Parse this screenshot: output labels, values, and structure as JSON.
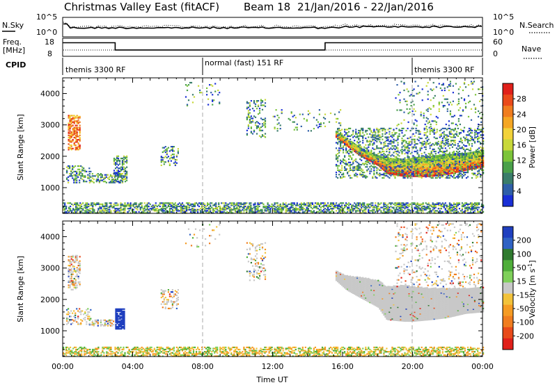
{
  "header": {
    "station": "Christmas Valley East (fitACF)",
    "beam": "Beam 18",
    "date_range": "21/Jan/2016 - 22/Jan/2016"
  },
  "noise_panel": {
    "left_label": "N.Sky",
    "right_label": "N.Search",
    "left_ticks": [
      "10^5",
      "10^0"
    ],
    "right_ticks": [
      "10^5",
      "10^0"
    ]
  },
  "freq_panel": {
    "left_label_1": "Freq.",
    "left_label_2": "[MHz]",
    "left_ticks": [
      "18",
      "8"
    ],
    "right_label": "Nave",
    "right_ticks": [
      "60",
      "0"
    ],
    "freq_segments": [
      {
        "start_h": 0,
        "end_h": 3,
        "value": 0.75
      },
      {
        "start_h": 3,
        "end_h": 15,
        "value": 0.35
      },
      {
        "start_h": 15,
        "end_h": 24,
        "value": 0.75
      }
    ]
  },
  "cpid": {
    "label": "CPID",
    "segments": [
      {
        "start_h": 0,
        "label": "themis 3300 RF"
      },
      {
        "start_h": 8,
        "label": "normal (fast) 151 RF"
      },
      {
        "start_h": 20,
        "label": "themis 3300 RF"
      }
    ]
  },
  "chart_data": [
    {
      "type": "heatmap",
      "parameter": "Power",
      "ylabel": "Slant Range [km]",
      "xlabel": "Time UT",
      "ylim": [
        180,
        4500
      ],
      "xlim_hours": [
        0,
        24
      ],
      "y_ticks": [
        1000,
        2000,
        3000,
        4000
      ],
      "colorbar_label": "Power [dB]",
      "colorbar_ticks": [
        "4",
        "8",
        "12",
        "16",
        "20",
        "24",
        "28"
      ],
      "colorbar_colors": [
        "#1a2fd6",
        "#2f5fa8",
        "#3a7d6a",
        "#4aa04a",
        "#7cc43a",
        "#c8d83a",
        "#f2d23a",
        "#f5a623",
        "#f07d1f",
        "#ea4a1a",
        "#e0201a"
      ],
      "scatter_regions": [
        {
          "t0": 0.0,
          "t1": 24.0,
          "r0": 180,
          "r1": 500,
          "density": 0.55
        },
        {
          "t0": 0.3,
          "t1": 1.0,
          "r0": 2200,
          "r1": 3300,
          "density": 0.5
        },
        {
          "t0": 0.2,
          "t1": 1.6,
          "r0": 1150,
          "r1": 1700,
          "density": 0.35
        },
        {
          "t0": 1.5,
          "t1": 3.4,
          "r0": 1150,
          "r1": 1450,
          "density": 0.45
        },
        {
          "t0": 2.9,
          "t1": 3.7,
          "r0": 1150,
          "r1": 2000,
          "density": 0.5
        },
        {
          "t0": 5.6,
          "t1": 6.6,
          "r0": 1700,
          "r1": 2300,
          "density": 0.3
        },
        {
          "t0": 10.5,
          "t1": 11.6,
          "r0": 2600,
          "r1": 3800,
          "density": 0.2
        },
        {
          "t0": 15.6,
          "t1": 24.0,
          "r0": 1300,
          "r1": 2900,
          "density": 0.3
        },
        {
          "t0": 19.0,
          "t1": 24.0,
          "r0": 2900,
          "r1": 4400,
          "density": 0.08
        },
        {
          "t0": 7.0,
          "t1": 9.0,
          "r0": 3600,
          "r1": 4400,
          "density": 0.05
        },
        {
          "t0": 12.0,
          "t1": 16.0,
          "r0": 2800,
          "r1": 3500,
          "density": 0.05
        }
      ],
      "band": {
        "t": [
          15.6,
          16.5,
          17.0,
          18.0,
          18.5,
          19.5,
          20.0,
          21.0,
          22.0,
          23.0,
          24.0
        ],
        "lower": [
          2600,
          2200,
          2000,
          1700,
          1450,
          1350,
          1350,
          1350,
          1420,
          1550,
          1650
        ],
        "upper": [
          2800,
          2450,
          2250,
          2000,
          1950,
          1900,
          1950,
          2000,
          2050,
          2100,
          2200
        ]
      }
    },
    {
      "type": "heatmap",
      "parameter": "Velocity",
      "ylabel": "Slant Range [km]",
      "xlabel": "Time UT",
      "ylim": [
        180,
        4500
      ],
      "xlim_hours": [
        0,
        24
      ],
      "y_ticks": [
        1000,
        2000,
        3000,
        4000
      ],
      "colorbar_label": "Velocity [m s^-1]",
      "colorbar_ticks": [
        "200",
        "100",
        "50",
        "15",
        "-15",
        "-50",
        "-100",
        "-200"
      ],
      "colorbar_colors": [
        "#1f3fbf",
        "#2f62c4",
        "#2f7a2f",
        "#4fae3a",
        "#7fd05a",
        "#c8c8c8",
        "#f2c23a",
        "#f59b23",
        "#f07d1f",
        "#e84a1a",
        "#e0201a"
      ],
      "scatter_regions": [
        {
          "t0": 0.0,
          "t1": 24.0,
          "r0": 180,
          "r1": 480,
          "density": 0.45
        },
        {
          "t0": 0.3,
          "t1": 1.0,
          "r0": 2300,
          "r1": 3400,
          "density": 0.45
        },
        {
          "t0": 0.2,
          "t1": 1.6,
          "r0": 1200,
          "r1": 1700,
          "density": 0.3
        },
        {
          "t0": 1.5,
          "t1": 2.9,
          "r0": 1150,
          "r1": 1350,
          "density": 0.4
        },
        {
          "t0": 5.6,
          "t1": 6.6,
          "r0": 1700,
          "r1": 2300,
          "density": 0.3
        },
        {
          "t0": 10.5,
          "t1": 11.6,
          "r0": 2600,
          "r1": 3800,
          "density": 0.2
        },
        {
          "t0": 19.0,
          "t1": 24.0,
          "r0": 2400,
          "r1": 4400,
          "density": 0.1
        },
        {
          "t0": 7.0,
          "t1": 9.0,
          "r0": 3600,
          "r1": 4400,
          "density": 0.05
        }
      ],
      "grey_band": {
        "t": [
          15.6,
          16.2,
          17.0,
          18.0,
          18.5,
          19.5,
          20.0,
          21.0,
          22.0,
          23.0,
          24.0
        ],
        "lower": [
          2600,
          2300,
          2050,
          1750,
          1350,
          1300,
          1300,
          1350,
          1420,
          1550,
          1600
        ],
        "upper": [
          2900,
          2750,
          2700,
          2600,
          2400,
          2450,
          2400,
          2350,
          2350,
          2350,
          2400
        ]
      },
      "blue_block": {
        "t0": 3.0,
        "t1": 3.5,
        "r0": 1050,
        "r1": 1700
      }
    }
  ],
  "x_axis": {
    "ticks": [
      "00:00",
      "04:00",
      "08:00",
      "12:00",
      "16:00",
      "20:00",
      "00:00"
    ],
    "label": "Time UT"
  }
}
